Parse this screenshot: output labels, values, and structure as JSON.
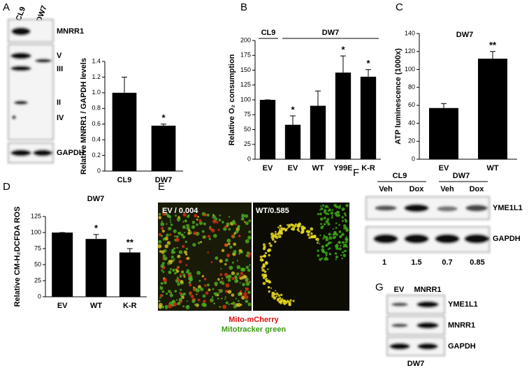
{
  "panels": {
    "letters": [
      "A",
      "B",
      "C",
      "D",
      "E",
      "F",
      "G"
    ],
    "a_blot": {
      "lanes": [
        "CL9",
        "DW7"
      ],
      "labels": [
        "MNRR1",
        "V",
        "III",
        "II",
        "IV",
        "GAPDH"
      ]
    },
    "e_image": {
      "left": "EV / 0.004",
      "right": "WT/0.585",
      "legend": [
        "Mito-mCherry",
        "Mitotracker green"
      ]
    },
    "f_blot": {
      "groups": [
        "CL9",
        "DW7"
      ],
      "lanes": [
        "Veh",
        "Dox",
        "Veh",
        "Dox"
      ],
      "labels": [
        "YME1L1",
        "GAPDH"
      ],
      "quant": [
        "1",
        "1.5",
        "0.7",
        "0.85"
      ]
    },
    "g_blot": {
      "lanes": [
        "EV",
        "MNRR1"
      ],
      "labels": [
        "YME1L1",
        "MNRR1",
        "GAPDH"
      ],
      "footer": "DW7"
    }
  },
  "chart_data": [
    {
      "type": "bar",
      "ylabel": "Relative MNRR1 / GAPDH levels",
      "categories": [
        "CL9",
        "DW7"
      ],
      "values": [
        1.0,
        0.58
      ],
      "errors": [
        0.2,
        0.02
      ],
      "significance": [
        null,
        "*"
      ],
      "color": "#000000",
      "ylim": [
        0,
        1.4
      ],
      "yticks": [
        0,
        0.2,
        0.4,
        0.6,
        0.8,
        {
          "value": 1,
          "label": "1.0"
        },
        1.2,
        1.4
      ]
    },
    {
      "type": "bar",
      "ylabel": "Relative O₂ consumption",
      "groups": [
        "CL9",
        "DW7"
      ],
      "categories": [
        "EV",
        "EV",
        "WT",
        "Y99E",
        "K-R"
      ],
      "values": [
        100,
        58,
        90,
        146,
        139
      ],
      "errors": [
        0,
        15,
        25,
        28,
        12
      ],
      "significance": [
        null,
        "*",
        null,
        "*",
        "*"
      ],
      "color": "#000000",
      "ylim": [
        0,
        200
      ],
      "yticks": [
        0,
        25,
        50,
        75,
        100,
        125,
        150,
        175,
        200
      ]
    },
    {
      "type": "bar",
      "title": "DW7",
      "ylabel": "ATP luminescence (1000x)",
      "categories": [
        "EV",
        "WT"
      ],
      "values": [
        57,
        112
      ],
      "errors": [
        5,
        8
      ],
      "significance": [
        null,
        "**"
      ],
      "color": "#000000",
      "ylim": [
        0,
        140
      ],
      "yticks": [
        0,
        20,
        40,
        60,
        80,
        100,
        120,
        140
      ]
    },
    {
      "type": "bar",
      "title": "DW7",
      "ylabel": "Relative CM-H₂DCFDA ROS",
      "categories": [
        "EV",
        "WT",
        "K-R"
      ],
      "values": [
        100,
        90,
        69
      ],
      "errors": [
        0,
        7,
        6
      ],
      "significance": [
        null,
        "*",
        "**"
      ],
      "color": "#000000",
      "ylim": [
        0,
        125
      ],
      "yticks": [
        0,
        25,
        50,
        75,
        100,
        125
      ]
    }
  ]
}
